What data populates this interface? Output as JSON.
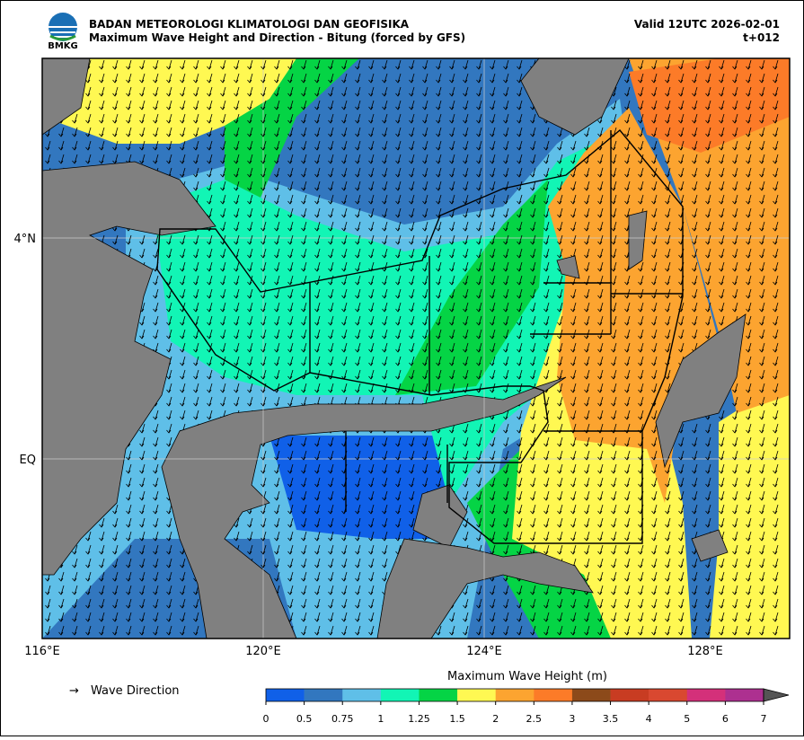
{
  "header": {
    "logo_text": "BMKG",
    "title": "BADAN METEOROLOGI KLIMATOLOGI DAN GEOFISIKA",
    "subtitle": "Maximum Wave Height and Direction - Bitung (forced by GFS)",
    "valid": "Valid 12UTC 2026-02-01",
    "lead": "t+012"
  },
  "map": {
    "x_labels": [
      "116°E",
      "120°E",
      "124°E",
      "128°E"
    ],
    "y_labels": [
      "4°N",
      "EQ"
    ]
  },
  "legend": {
    "arrow": "→",
    "label": "Wave Direction"
  },
  "colorbar": {
    "title": "Maximum Wave Height (m)",
    "ticks": [
      0,
      0.5,
      0.75,
      1,
      1.25,
      1.5,
      2,
      2.5,
      3,
      3.5,
      4,
      5,
      6,
      7
    ],
    "colors": [
      "#1060e8",
      "#3277bf",
      "#5fbfe8",
      "#12f5b5",
      "#05d445",
      "#fff852",
      "#fca430",
      "#fc7b28",
      "#8c4a1a",
      "#c83c22",
      "#d94830",
      "#d4307a",
      "#ad3090"
    ],
    "extend_color": "#555555"
  }
}
